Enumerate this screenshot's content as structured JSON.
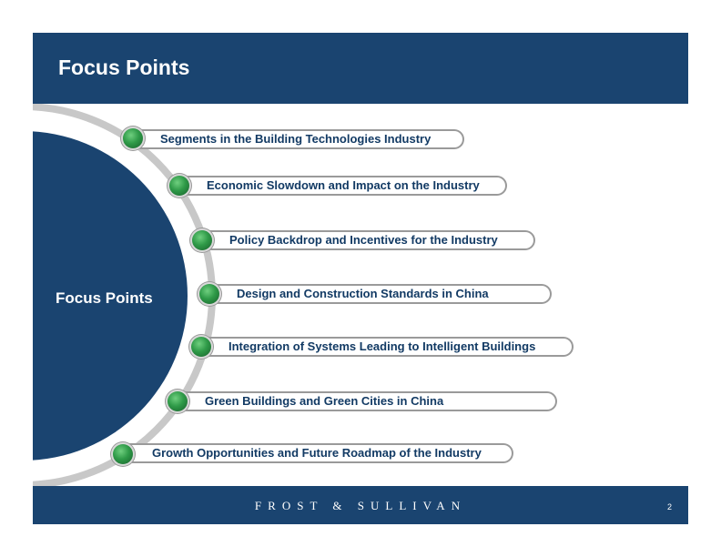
{
  "header": {
    "title": "Focus Points"
  },
  "center": {
    "label": "Focus Points"
  },
  "items": [
    {
      "label": "Segments in the Building Technologies Industry"
    },
    {
      "label": "Economic Slowdown and Impact on the Industry"
    },
    {
      "label": "Policy Backdrop and Incentives for the Industry"
    },
    {
      "label": "Design and Construction Standards in China"
    },
    {
      "label": "Integration of Systems Leading to Intelligent Buildings"
    },
    {
      "label": "Green Buildings and Green Cities in China"
    },
    {
      "label": "Growth Opportunities and Future Roadmap of the Industry"
    }
  ],
  "footer": {
    "brand": "FROST & SULLIVAN",
    "page_number": "2"
  },
  "colors": {
    "navy": "#1a4470",
    "text": "#123a64",
    "bullet": "#2f9a48",
    "ring": "#c8c8c8"
  }
}
